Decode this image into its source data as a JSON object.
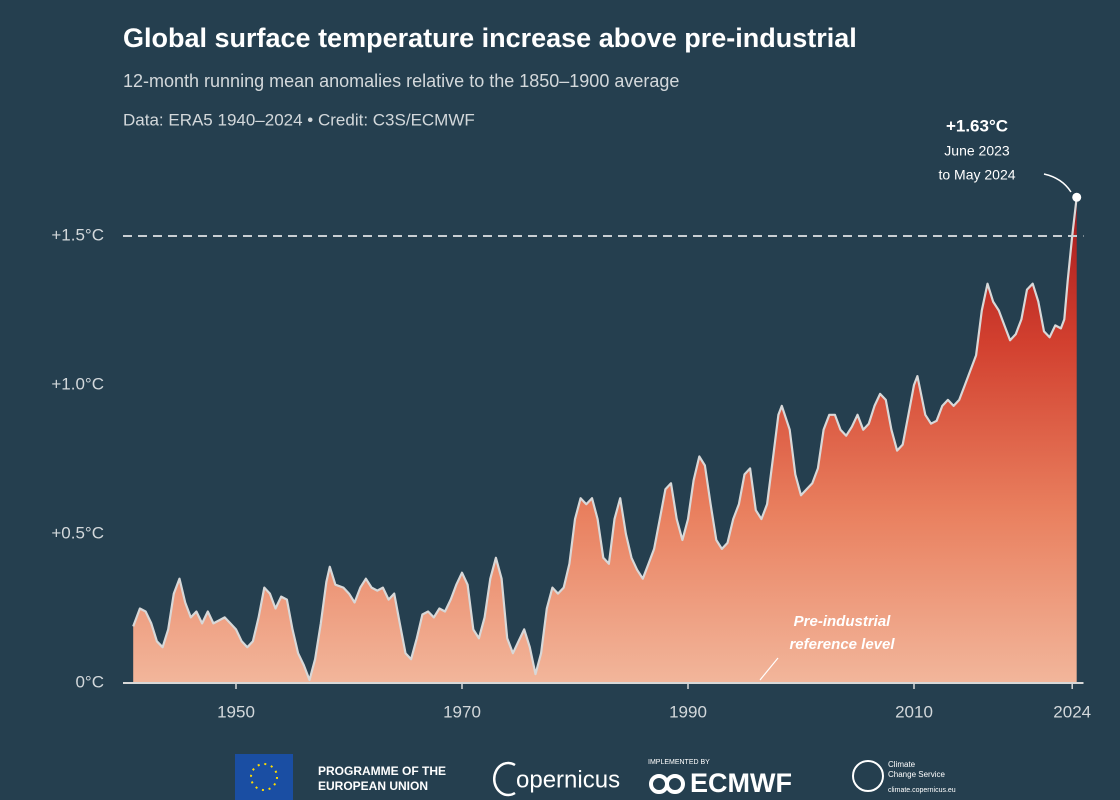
{
  "chart_data": {
    "type": "area",
    "title": "Global surface temperature increase above pre-industrial",
    "subtitle": "12-month running mean anomalies relative to the 1850–1900 average",
    "source": "Data: ERA5 1940–2024 • Credit: C3S/ECMWF",
    "x": [
      1940.9,
      1941.5,
      1942,
      1942.5,
      1943,
      1943.5,
      1944,
      1944.5,
      1945,
      1945.5,
      1946,
      1946.5,
      1947,
      1947.5,
      1948,
      1948.5,
      1949,
      1949.5,
      1950,
      1950.5,
      1951,
      1951.5,
      1952,
      1952.5,
      1953,
      1953.5,
      1954,
      1954.5,
      1955,
      1955.5,
      1956,
      1956.5,
      1957,
      1957.5,
      1958,
      1958.3,
      1958.8,
      1959.5,
      1960,
      1960.5,
      1961,
      1961.5,
      1962,
      1962.5,
      1963,
      1963.5,
      1964,
      1964.5,
      1965,
      1965.5,
      1966,
      1966.5,
      1967,
      1967.5,
      1968,
      1968.5,
      1969,
      1969.5,
      1970,
      1970.5,
      1971,
      1971.5,
      1972,
      1972.5,
      1973,
      1973.5,
      1974,
      1974.5,
      1975,
      1975.5,
      1976,
      1976.5,
      1977,
      1977.5,
      1978,
      1978.5,
      1979,
      1979.5,
      1980,
      1980.5,
      1981,
      1981.5,
      1982,
      1982.5,
      1983,
      1983.5,
      1984,
      1984.5,
      1985,
      1985.5,
      1986,
      1986.5,
      1987,
      1987.5,
      1988,
      1988.5,
      1989,
      1989.5,
      1990,
      1990.5,
      1991,
      1991.5,
      1992,
      1992.5,
      1993,
      1993.5,
      1994,
      1994.5,
      1995,
      1995.5,
      1996,
      1996.5,
      1997,
      1997.5,
      1998,
      1998.3,
      1999,
      1999.5,
      2000,
      2000.5,
      2001,
      2001.5,
      2002,
      2002.5,
      2003,
      2003.5,
      2004,
      2004.5,
      2005,
      2005.5,
      2006,
      2006.5,
      2007,
      2007.5,
      2008,
      2008.5,
      2009,
      2009.5,
      2010,
      2010.3,
      2011,
      2011.5,
      2012,
      2012.5,
      2013,
      2013.5,
      2014,
      2014.5,
      2015,
      2015.5,
      2016,
      2016.5,
      2017,
      2017.5,
      2018,
      2018.5,
      2019,
      2019.5,
      2020,
      2020.5,
      2021,
      2021.5,
      2022,
      2022.5,
      2023,
      2023.3,
      2023.6,
      2024,
      2024.4
    ],
    "values": [
      0.19,
      0.25,
      0.24,
      0.2,
      0.14,
      0.12,
      0.18,
      0.3,
      0.35,
      0.27,
      0.22,
      0.24,
      0.2,
      0.24,
      0.2,
      0.21,
      0.22,
      0.2,
      0.18,
      0.14,
      0.12,
      0.14,
      0.22,
      0.32,
      0.3,
      0.25,
      0.29,
      0.28,
      0.18,
      0.1,
      0.06,
      0.01,
      0.08,
      0.2,
      0.34,
      0.39,
      0.33,
      0.32,
      0.3,
      0.27,
      0.32,
      0.35,
      0.32,
      0.31,
      0.32,
      0.28,
      0.3,
      0.2,
      0.1,
      0.08,
      0.15,
      0.23,
      0.24,
      0.22,
      0.25,
      0.24,
      0.28,
      0.33,
      0.37,
      0.33,
      0.18,
      0.15,
      0.22,
      0.35,
      0.42,
      0.35,
      0.15,
      0.1,
      0.14,
      0.18,
      0.12,
      0.03,
      0.1,
      0.25,
      0.32,
      0.3,
      0.32,
      0.4,
      0.55,
      0.62,
      0.6,
      0.62,
      0.55,
      0.42,
      0.4,
      0.55,
      0.62,
      0.5,
      0.42,
      0.38,
      0.35,
      0.4,
      0.45,
      0.55,
      0.65,
      0.67,
      0.55,
      0.48,
      0.55,
      0.68,
      0.76,
      0.73,
      0.6,
      0.48,
      0.45,
      0.47,
      0.55,
      0.6,
      0.7,
      0.72,
      0.58,
      0.55,
      0.6,
      0.75,
      0.9,
      0.93,
      0.85,
      0.7,
      0.63,
      0.65,
      0.67,
      0.72,
      0.85,
      0.9,
      0.9,
      0.85,
      0.83,
      0.86,
      0.9,
      0.85,
      0.87,
      0.93,
      0.97,
      0.95,
      0.85,
      0.78,
      0.8,
      0.9,
      1.0,
      1.03,
      0.9,
      0.87,
      0.88,
      0.93,
      0.95,
      0.93,
      0.95,
      1.0,
      1.05,
      1.1,
      1.25,
      1.34,
      1.28,
      1.25,
      1.2,
      1.15,
      1.17,
      1.22,
      1.32,
      1.34,
      1.28,
      1.18,
      1.16,
      1.2,
      1.19,
      1.22,
      1.35,
      1.5,
      1.63
    ],
    "xlim": [
      1940,
      2025
    ],
    "ylim": [
      0,
      1.75
    ],
    "xticks": [
      1950,
      1970,
      1990,
      2010,
      2024
    ],
    "yticks": [
      {
        "value": 0,
        "label": "0°C"
      },
      {
        "value": 0.5,
        "label": "+0.5°C"
      },
      {
        "value": 1,
        "label": "+1.0°C"
      },
      {
        "value": 1.5,
        "label": "+1.5°C"
      }
    ],
    "threshold": 1.5,
    "color": "#d8d8d8",
    "annotations": {
      "peak_value": "+1.63°C",
      "peak_period": [
        "June 2023",
        "to May 2024"
      ],
      "reference": [
        "Pre-industrial",
        "reference level"
      ]
    }
  },
  "footer": {
    "eu": [
      "PROGRAMME OF THE",
      "EUROPEAN UNION"
    ],
    "copernicus": "opernicus",
    "implemented": "IMPLEMENTED BY",
    "ecmwf": "ECMWF",
    "c3s": [
      "Climate",
      "Change Service"
    ],
    "url": "climate.copernicus.eu"
  }
}
